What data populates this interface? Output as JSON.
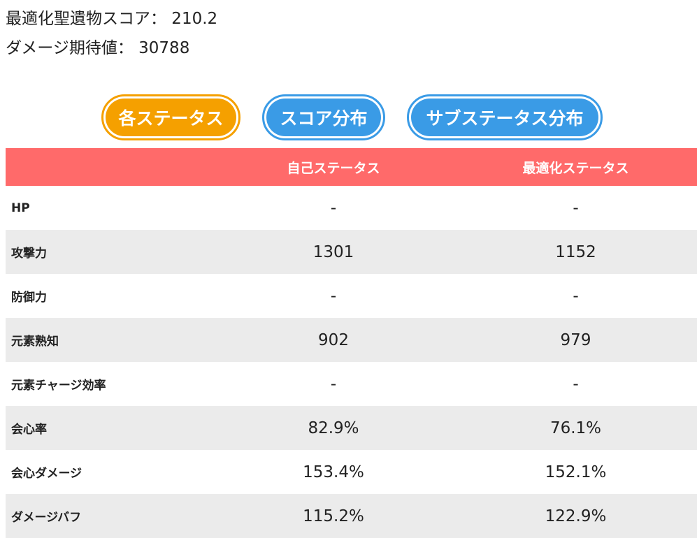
{
  "summary": {
    "score_line": "最適化聖遺物スコア： 210.2",
    "damage_line": "ダメージ期待値： 30788"
  },
  "tabs": [
    {
      "label": "各ステータス",
      "active": true
    },
    {
      "label": "スコア分布",
      "active": false
    },
    {
      "label": "サブステータス分布",
      "active": false
    }
  ],
  "colors": {
    "active_tab": "#f5a000",
    "inactive_tab": "#3a9be6",
    "header_bg": "#ff6a6a",
    "row_shade": "#ebebeb"
  },
  "table": {
    "headers": [
      "",
      "自己ステータス",
      "最適化ステータス"
    ],
    "rows": [
      {
        "label": "HP",
        "own": "-",
        "optimized": "-"
      },
      {
        "label": "攻撃力",
        "own": "1301",
        "optimized": "1152"
      },
      {
        "label": "防御力",
        "own": "-",
        "optimized": "-"
      },
      {
        "label": "元素熟知",
        "own": "902",
        "optimized": "979"
      },
      {
        "label": "元素チャージ効率",
        "own": "-",
        "optimized": "-"
      },
      {
        "label": "会心率",
        "own": "82.9%",
        "optimized": "76.1%"
      },
      {
        "label": "会心ダメージ",
        "own": "153.4%",
        "optimized": "152.1%"
      },
      {
        "label": "ダメージバフ",
        "own": "115.2%",
        "optimized": "122.9%"
      }
    ]
  }
}
